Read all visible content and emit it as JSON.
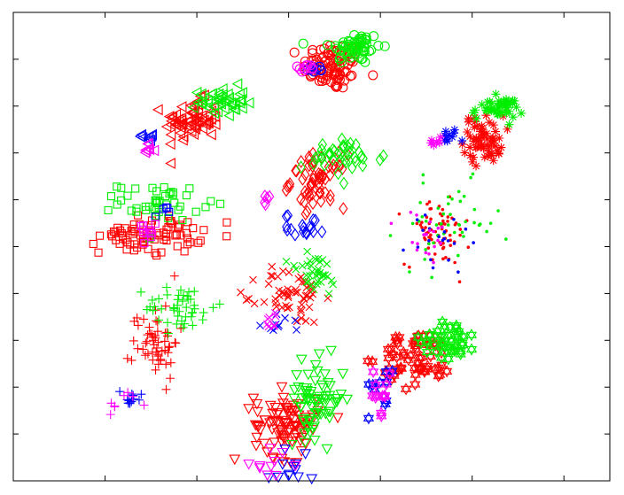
{
  "chart_data": {
    "type": "scatter",
    "title": "",
    "xlabel": "",
    "ylabel": "",
    "xlim": [
      0,
      13
    ],
    "ylim": [
      0,
      10
    ],
    "x_ticks": [
      0,
      2,
      4,
      6,
      8,
      10,
      12,
      13
    ],
    "y_ticks": [
      0,
      1,
      2,
      3,
      4,
      5,
      6,
      7,
      8,
      9,
      10
    ],
    "tick_labels_visible": false,
    "grid": false,
    "legend": "none",
    "colors": {
      "red": "#ff0000",
      "green": "#00ee00",
      "blue": "#0000ff",
      "magenta": "#ff00ff"
    },
    "clusters": [
      {
        "marker": "circle",
        "groups": [
          {
            "color": "red",
            "n": 90,
            "cx": 6.95,
            "cy": 8.85,
            "sx": 0.32,
            "sy": 0.26
          },
          {
            "color": "green",
            "n": 60,
            "cx": 7.45,
            "cy": 9.25,
            "sx": 0.28,
            "sy": 0.18
          },
          {
            "color": "blue",
            "n": 8,
            "cx": 6.6,
            "cy": 8.8,
            "sx": 0.12,
            "sy": 0.06
          },
          {
            "color": "magenta",
            "n": 10,
            "cx": 6.35,
            "cy": 8.8,
            "sx": 0.12,
            "sy": 0.05
          }
        ]
      },
      {
        "marker": "triangle-left",
        "groups": [
          {
            "color": "red",
            "n": 70,
            "cx": 3.9,
            "cy": 7.7,
            "sx": 0.3,
            "sy": 0.22
          },
          {
            "color": "green",
            "n": 45,
            "cx": 4.55,
            "cy": 8.1,
            "sx": 0.25,
            "sy": 0.16
          },
          {
            "color": "blue",
            "n": 8,
            "cx": 2.95,
            "cy": 7.35,
            "sx": 0.07,
            "sy": 0.08
          },
          {
            "color": "magenta",
            "n": 8,
            "cx": 2.95,
            "cy": 7.05,
            "sx": 0.06,
            "sy": 0.08
          }
        ]
      },
      {
        "marker": "asterisk",
        "groups": [
          {
            "color": "red",
            "n": 60,
            "cx": 10.25,
            "cy": 7.3,
            "sx": 0.22,
            "sy": 0.25
          },
          {
            "color": "green",
            "n": 45,
            "cx": 10.55,
            "cy": 7.95,
            "sx": 0.28,
            "sy": 0.12
          },
          {
            "color": "blue",
            "n": 10,
            "cx": 9.5,
            "cy": 7.35,
            "sx": 0.1,
            "sy": 0.08
          },
          {
            "color": "magenta",
            "n": 6,
            "cx": 9.15,
            "cy": 7.25,
            "sx": 0.1,
            "sy": 0.1
          }
        ]
      },
      {
        "marker": "diamond",
        "groups": [
          {
            "color": "red",
            "n": 60,
            "cx": 6.65,
            "cy": 6.4,
            "sx": 0.3,
            "sy": 0.28
          },
          {
            "color": "green",
            "n": 40,
            "cx": 7.2,
            "cy": 6.9,
            "sx": 0.45,
            "sy": 0.2
          },
          {
            "color": "blue",
            "n": 18,
            "cx": 6.35,
            "cy": 5.45,
            "sx": 0.22,
            "sy": 0.12
          },
          {
            "color": "magenta",
            "n": 5,
            "cx": 5.55,
            "cy": 5.95,
            "sx": 0.05,
            "sy": 0.12
          }
        ]
      },
      {
        "marker": "square",
        "groups": [
          {
            "color": "red",
            "n": 80,
            "cx": 3.0,
            "cy": 5.25,
            "sx": 0.55,
            "sy": 0.2
          },
          {
            "color": "green",
            "n": 45,
            "cx": 3.2,
            "cy": 5.95,
            "sx": 0.45,
            "sy": 0.2
          },
          {
            "color": "blue",
            "n": 5,
            "cx": 3.25,
            "cy": 5.7,
            "sx": 0.08,
            "sy": 0.08
          },
          {
            "color": "magenta",
            "n": 12,
            "cx": 2.85,
            "cy": 5.25,
            "sx": 0.12,
            "sy": 0.15
          }
        ]
      },
      {
        "marker": "dot",
        "groups": [
          {
            "color": "red",
            "n": 70,
            "cx": 9.25,
            "cy": 5.3,
            "sx": 0.35,
            "sy": 0.35
          },
          {
            "color": "green",
            "n": 45,
            "cx": 9.5,
            "cy": 5.45,
            "sx": 0.55,
            "sy": 0.45
          },
          {
            "color": "blue",
            "n": 20,
            "cx": 9.25,
            "cy": 5.1,
            "sx": 0.35,
            "sy": 0.4
          },
          {
            "color": "magenta",
            "n": 20,
            "cx": 9.0,
            "cy": 5.2,
            "sx": 0.3,
            "sy": 0.3
          }
        ]
      },
      {
        "marker": "plus",
        "groups": [
          {
            "color": "red",
            "n": 55,
            "cx": 3.1,
            "cy": 3.0,
            "sx": 0.25,
            "sy": 0.4
          },
          {
            "color": "green",
            "n": 45,
            "cx": 3.65,
            "cy": 3.7,
            "sx": 0.38,
            "sy": 0.25
          },
          {
            "color": "blue",
            "n": 12,
            "cx": 2.55,
            "cy": 1.8,
            "sx": 0.18,
            "sy": 0.12
          },
          {
            "color": "magenta",
            "n": 8,
            "cx": 2.45,
            "cy": 1.65,
            "sx": 0.18,
            "sy": 0.15
          }
        ]
      },
      {
        "marker": "cross",
        "groups": [
          {
            "color": "red",
            "n": 55,
            "cx": 6.05,
            "cy": 3.95,
            "sx": 0.35,
            "sy": 0.3
          },
          {
            "color": "green",
            "n": 35,
            "cx": 6.55,
            "cy": 4.4,
            "sx": 0.3,
            "sy": 0.25
          },
          {
            "color": "blue",
            "n": 10,
            "cx": 5.95,
            "cy": 3.35,
            "sx": 0.35,
            "sy": 0.1
          },
          {
            "color": "magenta",
            "n": 8,
            "cx": 5.6,
            "cy": 3.45,
            "sx": 0.2,
            "sy": 0.1
          }
        ]
      },
      {
        "marker": "hexagram",
        "groups": [
          {
            "color": "red",
            "n": 60,
            "cx": 8.8,
            "cy": 2.6,
            "sx": 0.4,
            "sy": 0.3
          },
          {
            "color": "green",
            "n": 40,
            "cx": 9.5,
            "cy": 3.05,
            "sx": 0.3,
            "sy": 0.22
          },
          {
            "color": "blue",
            "n": 10,
            "cx": 8.05,
            "cy": 2.05,
            "sx": 0.15,
            "sy": 0.3
          },
          {
            "color": "magenta",
            "n": 12,
            "cx": 7.95,
            "cy": 1.85,
            "sx": 0.18,
            "sy": 0.22
          }
        ]
      },
      {
        "marker": "triangle-down",
        "groups": [
          {
            "color": "red",
            "n": 90,
            "cx": 5.95,
            "cy": 1.2,
            "sx": 0.35,
            "sy": 0.35
          },
          {
            "color": "green",
            "n": 70,
            "cx": 6.6,
            "cy": 1.75,
            "sx": 0.3,
            "sy": 0.4
          },
          {
            "color": "blue",
            "n": 12,
            "cx": 6.0,
            "cy": 0.3,
            "sx": 0.22,
            "sy": 0.2
          },
          {
            "color": "magenta",
            "n": 10,
            "cx": 5.55,
            "cy": 0.35,
            "sx": 0.3,
            "sy": 0.15
          }
        ]
      }
    ]
  }
}
